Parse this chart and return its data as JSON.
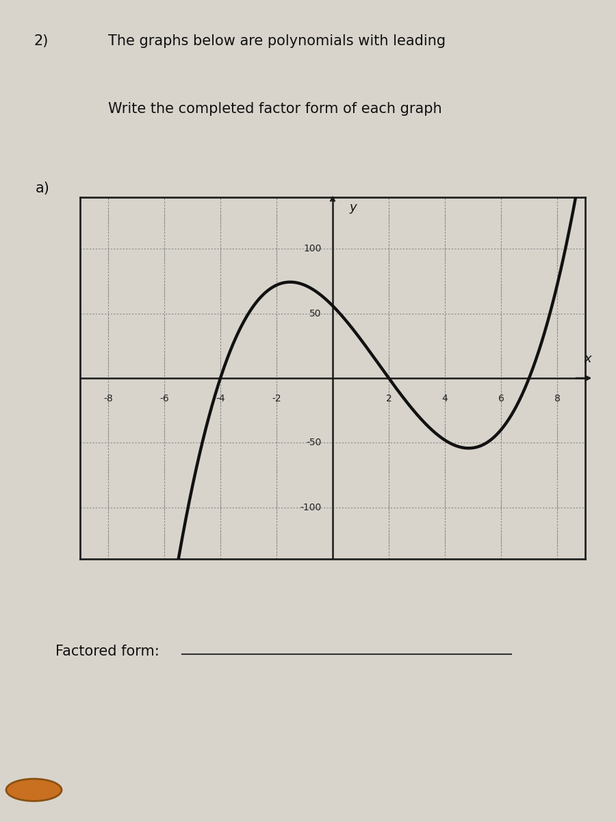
{
  "title_number": "2)",
  "title_label": "a)",
  "title_text1": "The graphs below are polynomials with leading",
  "title_text2": "Write the completed factor form of each graph",
  "factored_form_label": "Factored form:",
  "bg_color": "#d8d4cc",
  "plot_bg_color": "#d8d4cc",
  "curve_color": "#111111",
  "curve_linewidth": 3.2,
  "xlim": [
    -9,
    9
  ],
  "ylim": [
    -140,
    140
  ],
  "xticks": [
    -8,
    -6,
    -4,
    -2,
    2,
    4,
    6,
    8
  ],
  "yticks": [
    -100,
    -50,
    50,
    100
  ],
  "roots": [
    -4,
    2,
    7
  ],
  "leading_coeff": 1,
  "axis_color": "#1a1a1a",
  "grid_color": "#888888",
  "box_color": "#222222"
}
